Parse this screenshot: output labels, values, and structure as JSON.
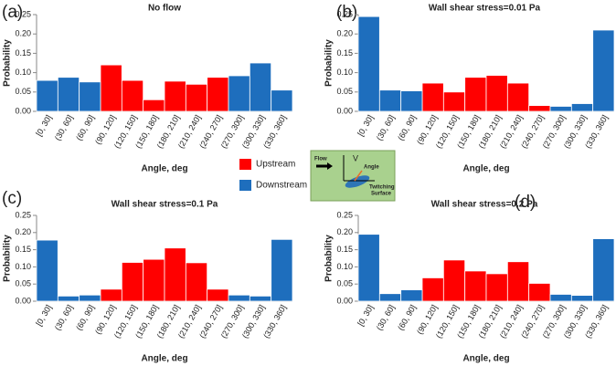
{
  "chart_data": [
    {
      "type": "bar",
      "panel_label": "(a)",
      "title": "No flow",
      "x_label": "Angle, deg",
      "y_label": "Probability",
      "categories": [
        "[0, 30]",
        "(30, 60]",
        "(60, 90]",
        "(90, 120]",
        "(120, 150]",
        "(150, 180]",
        "(180, 210]",
        "(210, 240]",
        "(240, 270]",
        "(270, 300]",
        "(300, 330]",
        "(330, 360]"
      ],
      "series": [
        {
          "name": "Upstream",
          "color": "#ff0000",
          "values": [
            null,
            null,
            null,
            0.12,
            0.08,
            0.03,
            0.078,
            0.07,
            0.088,
            null,
            null,
            null
          ]
        },
        {
          "name": "Downstream",
          "color": "#1e6ebd",
          "values": [
            0.08,
            0.088,
            0.076,
            null,
            null,
            null,
            null,
            null,
            null,
            0.092,
            0.125,
            0.055
          ]
        }
      ],
      "ylim": [
        0,
        0.25
      ],
      "yticks": [
        {
          "value": 0,
          "label": "0.00"
        },
        {
          "value": 0.05,
          "label": "0.05"
        },
        {
          "value": 0.1,
          "label": "0.10"
        },
        {
          "value": 0.15,
          "label": "0.15"
        },
        {
          "value": 0.2,
          "label": "0.20"
        },
        {
          "value": 0.25,
          "label": "0.25"
        }
      ]
    },
    {
      "type": "bar",
      "panel_label": "(b)",
      "title": "Wall shear stress=0.01 Pa",
      "x_label": "Angle, deg",
      "y_label": "Probability",
      "categories": [
        "[0, 30]",
        "(30, 60]",
        "(60, 90]",
        "(90, 120]",
        "(120, 150]",
        "(150, 180]",
        "(180, 210]",
        "(210, 240]",
        "(240, 270]",
        "(270, 300]",
        "(300, 330]",
        "(330, 360]"
      ],
      "series": [
        {
          "color": "#ff0000",
          "values": [
            null,
            null,
            null,
            0.073,
            0.05,
            0.088,
            0.093,
            0.073,
            0.015,
            null,
            null,
            null
          ]
        },
        {
          "color": "#1e6ebd",
          "values": [
            0.245,
            0.055,
            0.053,
            null,
            null,
            null,
            null,
            null,
            null,
            0.013,
            0.02,
            0.21
          ]
        }
      ],
      "ylim": [
        0,
        0.25
      ],
      "yticks": [
        {
          "value": 0,
          "label": "0.00"
        },
        {
          "value": 0.05,
          "label": "0.05"
        },
        {
          "value": 0.1,
          "label": "0.10"
        },
        {
          "value": 0.15,
          "label": "0.15"
        },
        {
          "value": 0.2,
          "label": "0.20"
        },
        {
          "value": 0.25,
          "label": "0.25"
        }
      ]
    },
    {
      "type": "bar",
      "panel_label": "(c)",
      "title": "Wall shear stress=0.1 Pa",
      "x_label": "Angle, deg",
      "y_label": "Probability",
      "categories": [
        "[0, 30]",
        "(30, 60]",
        "(60, 90]",
        "(90, 120]",
        "(120, 150]",
        "(150, 180]",
        "(180, 210]",
        "(210, 240]",
        "(240, 270]",
        "(270, 300]",
        "(300, 330]",
        "(330, 360]"
      ],
      "series": [
        {
          "color": "#ff0000",
          "values": [
            null,
            null,
            null,
            0.035,
            0.113,
            0.122,
            0.155,
            0.112,
            0.035,
            null,
            null,
            null
          ]
        },
        {
          "color": "#1e6ebd",
          "values": [
            0.178,
            0.015,
            0.018,
            null,
            null,
            null,
            null,
            null,
            null,
            0.018,
            0.015,
            0.18
          ]
        }
      ],
      "ylim": [
        0,
        0.25
      ],
      "yticks": [
        {
          "value": 0,
          "label": "0.00"
        },
        {
          "value": 0.05,
          "label": "0.05"
        },
        {
          "value": 0.1,
          "label": "0.10"
        },
        {
          "value": 0.15,
          "label": "0.15"
        },
        {
          "value": 0.2,
          "label": "0.20"
        },
        {
          "value": 0.25,
          "label": "0.25"
        }
      ]
    },
    {
      "type": "bar",
      "panel_label": "(d)",
      "title": "Wall shear stress=0.2 Pa",
      "x_label": "Angle, deg",
      "y_label": "Probability",
      "categories": [
        "[0, 30]",
        "(30, 60]",
        "(60, 90]",
        "(90, 120]",
        "(120, 150]",
        "(150, 180]",
        "(180, 210]",
        "(210, 240]",
        "(240, 270]",
        "(270, 300]",
        "(300, 330]",
        "(330, 360]"
      ],
      "series": [
        {
          "color": "#ff0000",
          "values": [
            null,
            null,
            null,
            0.068,
            0.12,
            0.088,
            0.08,
            0.115,
            0.052,
            null,
            null,
            null
          ]
        },
        {
          "color": "#1e6ebd",
          "values": [
            0.195,
            0.022,
            0.033,
            null,
            null,
            null,
            null,
            null,
            null,
            0.02,
            0.017,
            0.182
          ]
        }
      ],
      "ylim": [
        0,
        0.25
      ],
      "yticks": [
        {
          "value": 0,
          "label": "0.00"
        },
        {
          "value": 0.05,
          "label": "0.05"
        },
        {
          "value": 0.1,
          "label": "0.10"
        },
        {
          "value": 0.15,
          "label": "0.15"
        },
        {
          "value": 0.2,
          "label": "0.20"
        },
        {
          "value": 0.25,
          "label": "0.25"
        }
      ]
    }
  ],
  "inset": {
    "flow": "Flow",
    "velocity": "V",
    "angle": "Angle",
    "surface_1": "Twitching",
    "surface_2": "Surface"
  }
}
